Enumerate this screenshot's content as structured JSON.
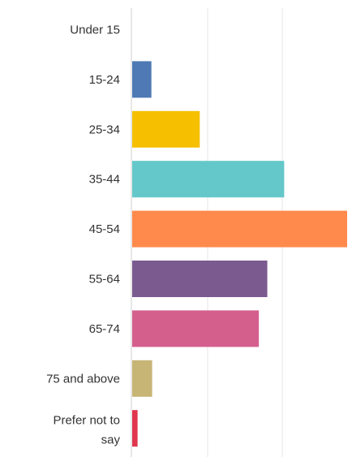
{
  "chart_data": {
    "type": "bar",
    "orientation": "horizontal",
    "categories": [
      "Under 15",
      "15-24",
      "25-34",
      "35-44",
      "45-54",
      "55-64",
      "65-74",
      "75 and above",
      "Prefer not to say"
    ],
    "values": [
      0,
      2.5,
      8.8,
      19.8,
      28,
      17.6,
      16.5,
      2.6,
      0.7
    ],
    "colors": [
      "#5b8ac9",
      "#4e79b4",
      "#f6bf00",
      "#64c8ca",
      "#ff8a4c",
      "#7b5a90",
      "#d45f8c",
      "#c7b576",
      "#e0364e"
    ],
    "xlim": [
      0,
      28
    ],
    "grid": true,
    "title": "",
    "xlabel": "",
    "ylabel": ""
  }
}
